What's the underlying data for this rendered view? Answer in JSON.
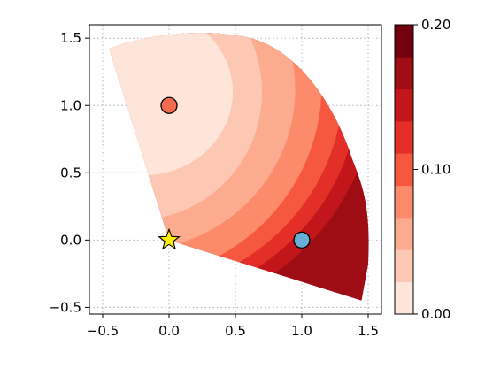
{
  "chart_data": {
    "type": "contour",
    "title": "",
    "xlabel": "",
    "ylabel": "",
    "xlim": [
      -0.6,
      1.6
    ],
    "ylim": [
      -0.55,
      1.6
    ],
    "xticks": [
      -0.5,
      0.0,
      0.5,
      1.0,
      1.5
    ],
    "xtick_labels": [
      "−0.5",
      "0.0",
      "0.5",
      "1.0",
      "1.5"
    ],
    "yticks": [
      -0.5,
      0.0,
      0.5,
      1.0,
      1.5
    ],
    "ytick_labels": [
      "−0.5",
      "0.0",
      "0.5",
      "1.0",
      "1.5"
    ],
    "grid": "dotted",
    "region": {
      "origin": [
        0.0,
        0.0
      ],
      "ray_left": [
        -0.45,
        1.42
      ],
      "ray_right": [
        1.45,
        -0.45
      ],
      "arc_through": [
        [
          0.5,
          1.52
        ],
        [
          1.0,
          1.25
        ],
        [
          1.38,
          0.6
        ],
        [
          1.5,
          0.0
        ]
      ]
    },
    "contour_levels": [
      0.0,
      0.025,
      0.05,
      0.075,
      0.1,
      0.125,
      0.15,
      0.175,
      0.2
    ],
    "colormap": [
      "#fee5d9",
      "#fcc8b3",
      "#fcab8f",
      "#fb8b6a",
      "#f6583f",
      "#e32f27",
      "#c3161b",
      "#9e0d14",
      "#72000d"
    ],
    "markers": [
      {
        "label": "",
        "shape": "circle",
        "x": 0.0,
        "y": 1.0,
        "color": "#f36c4e"
      },
      {
        "label": "",
        "shape": "circle",
        "x": 1.0,
        "y": 0.0,
        "color": "#6aaed6"
      },
      {
        "label": "",
        "shape": "star",
        "x": 0.0,
        "y": 0.0,
        "color": "#ffee00"
      }
    ],
    "colorbar": {
      "range": [
        0.0,
        0.2
      ],
      "ticks": [
        0.0,
        0.1,
        0.2
      ],
      "tick_labels": [
        "0.00",
        "0.10",
        "0.20"
      ],
      "placement": "right"
    }
  }
}
